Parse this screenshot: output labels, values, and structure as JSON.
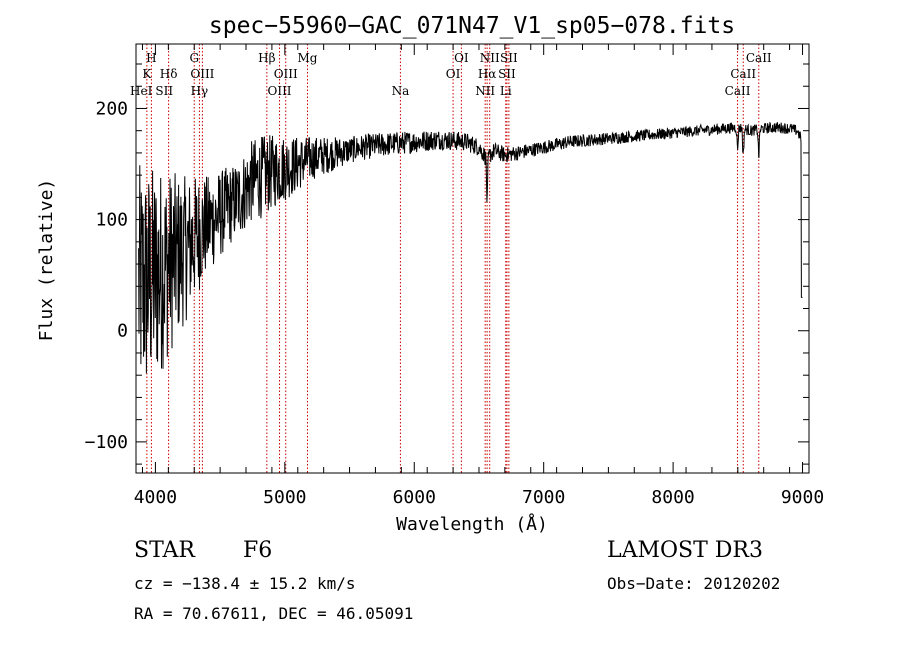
{
  "chart_data": {
    "type": "line",
    "title": "spec−55960−GAC_071N47_V1_sp05−078.fits",
    "xlabel": "Wavelength (Å)",
    "ylabel": "Flux (relative)",
    "xlim": [
      3850,
      9050
    ],
    "ylim": [
      -128,
      258
    ],
    "xticks": [
      4000,
      5000,
      6000,
      7000,
      8000,
      9000
    ],
    "yticks": [
      -100,
      0,
      100,
      200
    ],
    "ytick_labels": [
      "−100",
      "0",
      "100",
      "200"
    ],
    "series": [
      {
        "name": "flux",
        "anchors": {
          "x": [
            3870,
            3950,
            4050,
            4150,
            4250,
            4350,
            4450,
            4550,
            4650,
            4750,
            4850,
            4950,
            5050,
            5200,
            5400,
            5600,
            5800,
            6000,
            6200,
            6400,
            6500,
            6560,
            6620,
            6700,
            6800,
            7000,
            7200,
            7400,
            7600,
            7800,
            8000,
            8200,
            8400,
            8500,
            8600,
            8700,
            8800,
            8900,
            8960,
            9000
          ],
          "y": [
            40,
            45,
            55,
            65,
            75,
            90,
            100,
            110,
            120,
            135,
            140,
            145,
            148,
            155,
            160,
            165,
            168,
            170,
            172,
            170,
            165,
            155,
            162,
            158,
            160,
            165,
            170,
            172,
            174,
            176,
            178,
            180,
            182,
            183,
            180,
            182,
            183,
            182,
            180,
            170
          ]
        },
        "noise_amplitude": {
          "x": [
            3870,
            4000,
            4200,
            4400,
            4600,
            4800,
            5000,
            5200,
            5500,
            6000,
            6500,
            7000,
            8000,
            9000
          ],
          "y": [
            110,
            100,
            70,
            45,
            35,
            38,
            30,
            20,
            12,
            10,
            8,
            6,
            5,
            5
          ]
        },
        "absorption_lines": [
          {
            "wavelength": 6563,
            "depth": 40
          },
          {
            "wavelength": 8498,
            "depth": 20
          },
          {
            "wavelength": 8542,
            "depth": 25
          },
          {
            "wavelength": 8662,
            "depth": 25
          }
        ],
        "end_drop": {
          "from": 8990,
          "value": 30
        }
      }
    ],
    "reference_lines": [
      {
        "wavelength": 3934
      },
      {
        "wavelength": 3969
      },
      {
        "wavelength": 4102
      },
      {
        "wavelength": 4300
      },
      {
        "wavelength": 4340
      },
      {
        "wavelength": 4363
      },
      {
        "wavelength": 4861
      },
      {
        "wavelength": 4959
      },
      {
        "wavelength": 5007
      },
      {
        "wavelength": 5175
      },
      {
        "wavelength": 5893
      },
      {
        "wavelength": 6300
      },
      {
        "wavelength": 6364
      },
      {
        "wavelength": 6548
      },
      {
        "wavelength": 6563
      },
      {
        "wavelength": 6583
      },
      {
        "wavelength": 6707
      },
      {
        "wavelength": 6716
      },
      {
        "wavelength": 6731
      },
      {
        "wavelength": 8498
      },
      {
        "wavelength": 8542
      },
      {
        "wavelength": 8662
      }
    ],
    "line_labels": [
      {
        "text": "H",
        "row": 1,
        "wavelength": 3969
      },
      {
        "text": "K",
        "row": 2,
        "wavelength": 3934
      },
      {
        "text": "HeI",
        "row": 3,
        "wavelength": 3890
      },
      {
        "text": "SII",
        "row": 3,
        "wavelength": 4068
      },
      {
        "text": "Hδ",
        "row": 2,
        "wavelength": 4102
      },
      {
        "text": "G",
        "row": 1,
        "wavelength": 4300
      },
      {
        "text": "OIII",
        "row": 2,
        "wavelength": 4363
      },
      {
        "text": "Hγ",
        "row": 3,
        "wavelength": 4340
      },
      {
        "text": "Hβ",
        "row": 1,
        "wavelength": 4861
      },
      {
        "text": "OIII",
        "row": 2,
        "wavelength": 5007
      },
      {
        "text": "OIII",
        "row": 3,
        "wavelength": 4959
      },
      {
        "text": "Mg",
        "row": 1,
        "wavelength": 5175
      },
      {
        "text": "Na",
        "row": 3,
        "wavelength": 5893
      },
      {
        "text": "OI",
        "row": 1,
        "wavelength": 6364
      },
      {
        "text": "OI",
        "row": 2,
        "wavelength": 6300
      },
      {
        "text": "NII",
        "row": 1,
        "wavelength": 6583
      },
      {
        "text": "Hα",
        "row": 2,
        "wavelength": 6563
      },
      {
        "text": "NII",
        "row": 3,
        "wavelength": 6548
      },
      {
        "text": "SII",
        "row": 1,
        "wavelength": 6731
      },
      {
        "text": "SII",
        "row": 2,
        "wavelength": 6716
      },
      {
        "text": "Li",
        "row": 3,
        "wavelength": 6707
      },
      {
        "text": "CaII",
        "row": 1,
        "wavelength": 8662
      },
      {
        "text": "CaII",
        "row": 2,
        "wavelength": 8542
      },
      {
        "text": "CaII",
        "row": 3,
        "wavelength": 8498
      }
    ],
    "colors": {
      "spectrum": "#000000",
      "reference_lines": "#cc0000",
      "axes": "#000000"
    }
  },
  "info": {
    "class": "STAR",
    "subclass": "F6",
    "survey": "LAMOST DR3",
    "cz": "cz = −138.4 ± 15.2 km/s",
    "obs_date": "Obs−Date: 20120202",
    "radec": "RA =  70.67611, DEC =  46.05091"
  }
}
